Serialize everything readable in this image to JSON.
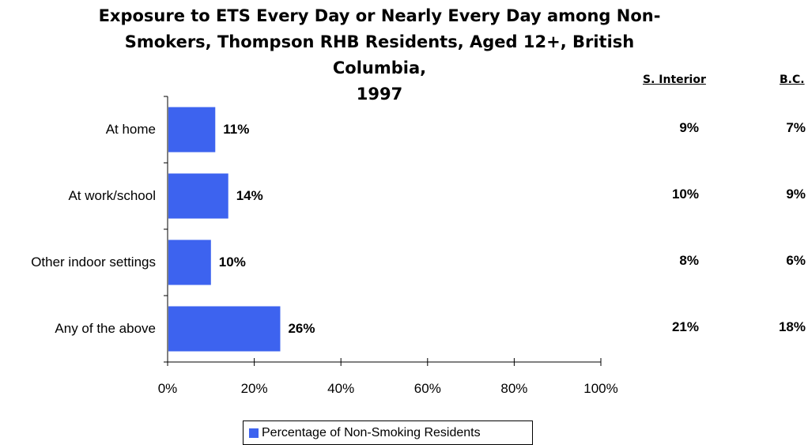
{
  "chart_data": {
    "type": "bar",
    "orientation": "horizontal",
    "title_lines": [
      "Exposure to ETS Every Day or Nearly Every Day among Non-",
      "Smokers, Thompson RHB Residents, Aged 12+, British Columbia,",
      "1997"
    ],
    "categories": [
      "At home",
      "At work/school",
      "Other indoor settings",
      "Any of the above"
    ],
    "series": [
      {
        "name": "Percentage of Non-Smoking Residents",
        "values": [
          11,
          14,
          10,
          26
        ],
        "labels": [
          "11%",
          "14%",
          "10%",
          "26%"
        ],
        "color": "#3d63ef"
      }
    ],
    "xlim": [
      0,
      100
    ],
    "xticks": [
      0,
      20,
      40,
      60,
      80,
      100
    ],
    "xtick_labels": [
      "0%",
      "20%",
      "40%",
      "60%",
      "80%",
      "100%"
    ],
    "grid": false,
    "legend_position": "bottom-center",
    "comparison_columns": [
      {
        "header": "S. Interior",
        "values": [
          "9%",
          "10%",
          "8%",
          "21%"
        ]
      },
      {
        "header": "B.C.",
        "values": [
          "7%",
          "9%",
          "6%",
          "18%"
        ]
      }
    ]
  }
}
